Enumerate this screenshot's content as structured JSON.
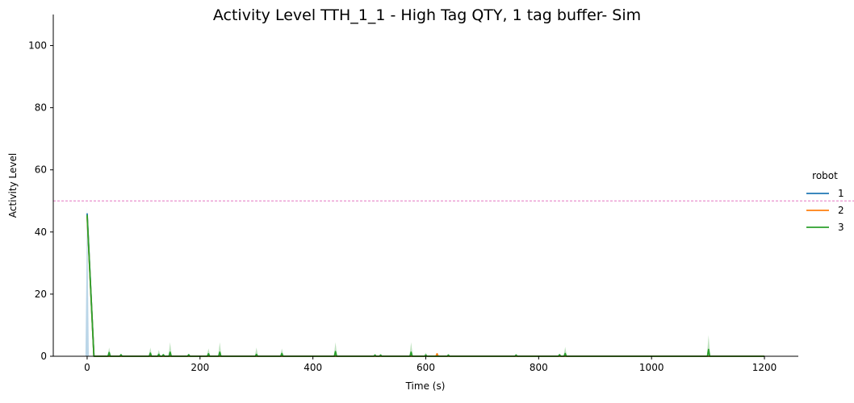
{
  "chart_data": {
    "type": "line",
    "title": "Activity Level TTH_1_1 - High Tag QTY, 1 tag buffer- Sim",
    "xlabel": "Time (s)",
    "ylabel": "Activity Level",
    "xlim": [
      -60,
      1260
    ],
    "ylim": [
      0,
      110
    ],
    "xticks": [
      0,
      200,
      400,
      600,
      800,
      1000,
      1200
    ],
    "yticks": [
      0,
      20,
      40,
      60,
      80,
      100
    ],
    "xtick_labels": [
      "0",
      "200",
      "400",
      "600",
      "800",
      "1000",
      "1200"
    ],
    "ytick_labels": [
      "0",
      "20",
      "40",
      "60",
      "80",
      "100"
    ],
    "grid": false,
    "legend": {
      "title": "robot",
      "placement": "right"
    },
    "threshold": {
      "y": 50,
      "color": "#e377c2",
      "style": "dashed"
    },
    "series": [
      {
        "name": "1",
        "color": "#1f77b4",
        "points": [
          [
            0,
            46
          ],
          [
            12,
            0
          ],
          [
            1200,
            0
          ]
        ],
        "band_peaks": [
          [
            0,
            48
          ]
        ]
      },
      {
        "name": "2",
        "color": "#ff7f0e",
        "points": [
          [
            0,
            45
          ],
          [
            12,
            0
          ],
          [
            618,
            0
          ],
          [
            620,
            0.8
          ],
          [
            622,
            0
          ],
          [
            1200,
            0
          ]
        ],
        "band_peaks": []
      },
      {
        "name": "3",
        "color": "#2ca02c",
        "points": [
          [
            0,
            45.5
          ],
          [
            12,
            0
          ],
          [
            37,
            0
          ],
          [
            39,
            1.2
          ],
          [
            41,
            0
          ],
          [
            58,
            0
          ],
          [
            60,
            0.5
          ],
          [
            62,
            0
          ],
          [
            110,
            0
          ],
          [
            112,
            1
          ],
          [
            114,
            0
          ],
          [
            125,
            0
          ],
          [
            127,
            0.6
          ],
          [
            129,
            0
          ],
          [
            133,
            0
          ],
          [
            135,
            0.5
          ],
          [
            137,
            0
          ],
          [
            145,
            0
          ],
          [
            147,
            1.3
          ],
          [
            149,
            0
          ],
          [
            178,
            0
          ],
          [
            180,
            0.5
          ],
          [
            182,
            0
          ],
          [
            213,
            0
          ],
          [
            215,
            0.8
          ],
          [
            217,
            0
          ],
          [
            233,
            0
          ],
          [
            235,
            1.3
          ],
          [
            237,
            0
          ],
          [
            298,
            0
          ],
          [
            300,
            0.6
          ],
          [
            302,
            0
          ],
          [
            343,
            0
          ],
          [
            345,
            0.9
          ],
          [
            347,
            0
          ],
          [
            438,
            0
          ],
          [
            440,
            1.5
          ],
          [
            442,
            0
          ],
          [
            508,
            0
          ],
          [
            510,
            0.4
          ],
          [
            512,
            0
          ],
          [
            518,
            0
          ],
          [
            520,
            0.4
          ],
          [
            522,
            0
          ],
          [
            572,
            0
          ],
          [
            574,
            1.3
          ],
          [
            576,
            0
          ],
          [
            598,
            0
          ],
          [
            600,
            0.4
          ],
          [
            602,
            0
          ],
          [
            638,
            0
          ],
          [
            640,
            0.4
          ],
          [
            642,
            0
          ],
          [
            758,
            0
          ],
          [
            760,
            0.4
          ],
          [
            762,
            0
          ],
          [
            835,
            0
          ],
          [
            837,
            0.5
          ],
          [
            839,
            0
          ],
          [
            845,
            0
          ],
          [
            847,
            0.9
          ],
          [
            849,
            0
          ],
          [
            1099,
            0
          ],
          [
            1101,
            2.2
          ],
          [
            1103,
            0
          ],
          [
            1200,
            0
          ]
        ],
        "band_peaks": [
          [
            39,
            2.8
          ],
          [
            112,
            2.8
          ],
          [
            127,
            2
          ],
          [
            147,
            4.5
          ],
          [
            215,
            2.5
          ],
          [
            235,
            4.5
          ],
          [
            300,
            2.8
          ],
          [
            345,
            2.5
          ],
          [
            440,
            4.5
          ],
          [
            574,
            4.5
          ],
          [
            600,
            1.2
          ],
          [
            847,
            3
          ],
          [
            1101,
            6.8
          ]
        ]
      }
    ]
  }
}
